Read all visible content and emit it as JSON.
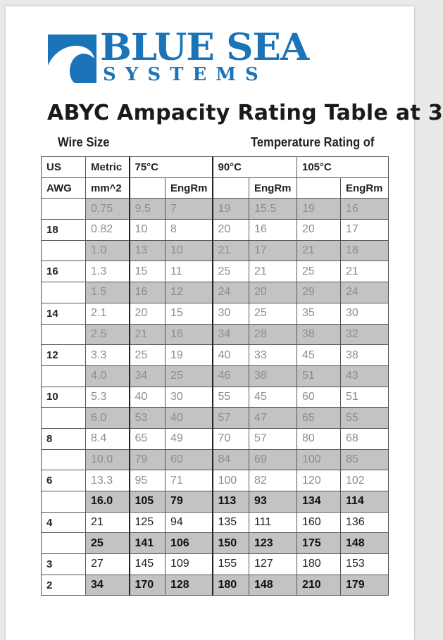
{
  "logo": {
    "line1": "BLUE SEA",
    "line2": "SYSTEMS",
    "color": "#1b73b8"
  },
  "title": "ABYC Ampacity Rating Table at 3",
  "headers": {
    "wire_size": "Wire Size",
    "temp_rating": "Temperature Rating of"
  },
  "table": {
    "header_row1": [
      "US",
      "Metric",
      "75°C",
      "90°C",
      "105°C"
    ],
    "header_row2": [
      "AWG",
      "mm^2",
      "EngRm",
      "EngRm",
      "EngRm"
    ],
    "rows": [
      {
        "us": "",
        "metric": "0.75",
        "c75": "9.5",
        "c75e": "7",
        "c90": "19",
        "c90e": "15.5",
        "c105": "19",
        "c105e": "16",
        "shade": true,
        "tone": "light"
      },
      {
        "us": "18",
        "metric": "0.82",
        "c75": "10",
        "c75e": "8",
        "c90": "20",
        "c90e": "16",
        "c105": "20",
        "c105e": "17",
        "shade": false,
        "tone": "light"
      },
      {
        "us": "",
        "metric": "1.0",
        "c75": "13",
        "c75e": "10",
        "c90": "21",
        "c90e": "17",
        "c105": "21",
        "c105e": "18",
        "shade": true,
        "tone": "light"
      },
      {
        "us": "16",
        "metric": "1.3",
        "c75": "15",
        "c75e": "11",
        "c90": "25",
        "c90e": "21",
        "c105": "25",
        "c105e": "21",
        "shade": false,
        "tone": "light"
      },
      {
        "us": "",
        "metric": "1.5",
        "c75": "16",
        "c75e": "12",
        "c90": "24",
        "c90e": "20",
        "c105": "29",
        "c105e": "24",
        "shade": true,
        "tone": "light"
      },
      {
        "us": "14",
        "metric": "2.1",
        "c75": "20",
        "c75e": "15",
        "c90": "30",
        "c90e": "25",
        "c105": "35",
        "c105e": "30",
        "shade": false,
        "tone": "light"
      },
      {
        "us": "",
        "metric": "2.5",
        "c75": "21",
        "c75e": "16",
        "c90": "34",
        "c90e": "28",
        "c105": "38",
        "c105e": "32",
        "shade": true,
        "tone": "light"
      },
      {
        "us": "12",
        "metric": "3.3",
        "c75": "25",
        "c75e": "19",
        "c90": "40",
        "c90e": "33",
        "c105": "45",
        "c105e": "38",
        "shade": false,
        "tone": "light"
      },
      {
        "us": "",
        "metric": "4.0",
        "c75": "34",
        "c75e": "25",
        "c90": "46",
        "c90e": "38",
        "c105": "51",
        "c105e": "43",
        "shade": true,
        "tone": "light"
      },
      {
        "us": "10",
        "metric": "5.3",
        "c75": "40",
        "c75e": "30",
        "c90": "55",
        "c90e": "45",
        "c105": "60",
        "c105e": "51",
        "shade": false,
        "tone": "light"
      },
      {
        "us": "",
        "metric": "6.0",
        "c75": "53",
        "c75e": "40",
        "c90": "57",
        "c90e": "47",
        "c105": "65",
        "c105e": "55",
        "shade": true,
        "tone": "light"
      },
      {
        "us": "8",
        "metric": "8.4",
        "c75": "65",
        "c75e": "49",
        "c90": "70",
        "c90e": "57",
        "c105": "80",
        "c105e": "68",
        "shade": false,
        "tone": "light"
      },
      {
        "us": "",
        "metric": "10.0",
        "c75": "79",
        "c75e": "60",
        "c90": "84",
        "c90e": "69",
        "c105": "100",
        "c105e": "85",
        "shade": true,
        "tone": "light"
      },
      {
        "us": "6",
        "metric": "13.3",
        "c75": "95",
        "c75e": "71",
        "c90": "100",
        "c90e": "82",
        "c105": "120",
        "c105e": "102",
        "shade": false,
        "tone": "light"
      },
      {
        "us": "",
        "metric": "16.0",
        "c75": "105",
        "c75e": "79",
        "c90": "113",
        "c90e": "93",
        "c105": "134",
        "c105e": "114",
        "shade": true,
        "tone": "bold"
      },
      {
        "us": "4",
        "metric": "21",
        "c75": "125",
        "c75e": "94",
        "c90": "135",
        "c90e": "111",
        "c105": "160",
        "c105e": "136",
        "shade": false,
        "tone": "dark"
      },
      {
        "us": "",
        "metric": "25",
        "c75": "141",
        "c75e": "106",
        "c90": "150",
        "c90e": "123",
        "c105": "175",
        "c105e": "148",
        "shade": true,
        "tone": "bold"
      },
      {
        "us": "3",
        "metric": "27",
        "c75": "145",
        "c75e": "109",
        "c90": "155",
        "c90e": "127",
        "c105": "180",
        "c105e": "153",
        "shade": false,
        "tone": "dark"
      },
      {
        "us": "2",
        "metric": "34",
        "c75": "170",
        "c75e": "128",
        "c90": "180",
        "c90e": "148",
        "c105": "210",
        "c105e": "179",
        "shade": true,
        "tone": "bold"
      }
    ]
  }
}
